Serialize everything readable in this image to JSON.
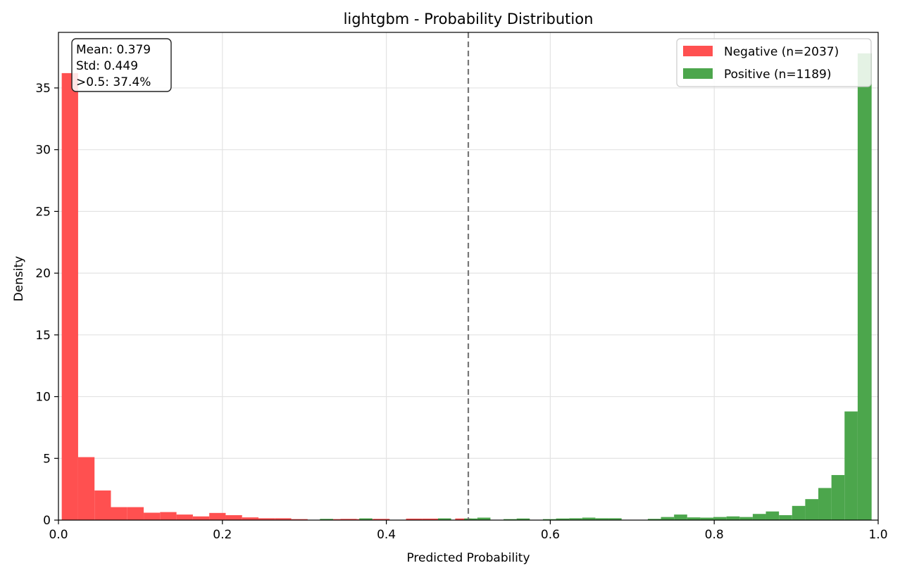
{
  "chart_data": {
    "type": "bar",
    "title": "lightgbm - Probability Distribution",
    "xlabel": "Predicted Probability",
    "ylabel": "Density",
    "xlim": [
      0,
      1
    ],
    "ylim": [
      0,
      39.5
    ],
    "xticks": [
      "0.0",
      "0.2",
      "0.4",
      "0.6",
      "0.8",
      "1.0"
    ],
    "yticks": [
      "0",
      "5",
      "10",
      "15",
      "20",
      "25",
      "30",
      "35"
    ],
    "grid": true,
    "legend_position": "top-right",
    "threshold": 0.5,
    "stats_box": {
      "line1": "Mean: 0.379",
      "line2": "Std: 0.449",
      "line3": ">0.5: 37.4%"
    },
    "series": [
      {
        "name": "Negative (n=2037)",
        "color": "#ff5050",
        "bins": [
          [
            0.004,
            0.024,
            36.2
          ],
          [
            0.024,
            0.044,
            5.1
          ],
          [
            0.044,
            0.064,
            2.4
          ],
          [
            0.064,
            0.084,
            1.05
          ],
          [
            0.084,
            0.104,
            1.05
          ],
          [
            0.104,
            0.124,
            0.6
          ],
          [
            0.124,
            0.144,
            0.65
          ],
          [
            0.144,
            0.164,
            0.45
          ],
          [
            0.164,
            0.184,
            0.3
          ],
          [
            0.184,
            0.204,
            0.58
          ],
          [
            0.204,
            0.224,
            0.4
          ],
          [
            0.224,
            0.244,
            0.22
          ],
          [
            0.244,
            0.264,
            0.15
          ],
          [
            0.264,
            0.284,
            0.15
          ],
          [
            0.284,
            0.304,
            0.08
          ],
          [
            0.324,
            0.344,
            0.08
          ],
          [
            0.344,
            0.364,
            0.1
          ],
          [
            0.364,
            0.384,
            0.08
          ],
          [
            0.384,
            0.404,
            0.1
          ],
          [
            0.424,
            0.444,
            0.12
          ],
          [
            0.444,
            0.464,
            0.12
          ],
          [
            0.484,
            0.504,
            0.13
          ]
        ]
      },
      {
        "name": "Positive (n=1189)",
        "color": "#4ca64c",
        "bins": [
          [
            0.319,
            0.335,
            0.1
          ],
          [
            0.367,
            0.383,
            0.14
          ],
          [
            0.463,
            0.479,
            0.14
          ],
          [
            0.495,
            0.511,
            0.13
          ],
          [
            0.511,
            0.527,
            0.2
          ],
          [
            0.543,
            0.559,
            0.08
          ],
          [
            0.559,
            0.575,
            0.13
          ],
          [
            0.591,
            0.607,
            0.08
          ],
          [
            0.607,
            0.623,
            0.13
          ],
          [
            0.623,
            0.639,
            0.15
          ],
          [
            0.639,
            0.655,
            0.2
          ],
          [
            0.655,
            0.671,
            0.15
          ],
          [
            0.671,
            0.687,
            0.15
          ],
          [
            0.719,
            0.735,
            0.1
          ],
          [
            0.735,
            0.751,
            0.25
          ],
          [
            0.751,
            0.767,
            0.45
          ],
          [
            0.767,
            0.783,
            0.22
          ],
          [
            0.783,
            0.799,
            0.2
          ],
          [
            0.799,
            0.815,
            0.25
          ],
          [
            0.815,
            0.831,
            0.3
          ],
          [
            0.831,
            0.847,
            0.25
          ],
          [
            0.847,
            0.863,
            0.5
          ],
          [
            0.863,
            0.879,
            0.7
          ],
          [
            0.879,
            0.895,
            0.4
          ],
          [
            0.895,
            0.911,
            1.15
          ],
          [
            0.911,
            0.927,
            1.7
          ],
          [
            0.927,
            0.943,
            2.6
          ],
          [
            0.943,
            0.959,
            3.65
          ],
          [
            0.959,
            0.975,
            8.8
          ],
          [
            0.975,
            0.992,
            37.8
          ]
        ]
      }
    ]
  }
}
